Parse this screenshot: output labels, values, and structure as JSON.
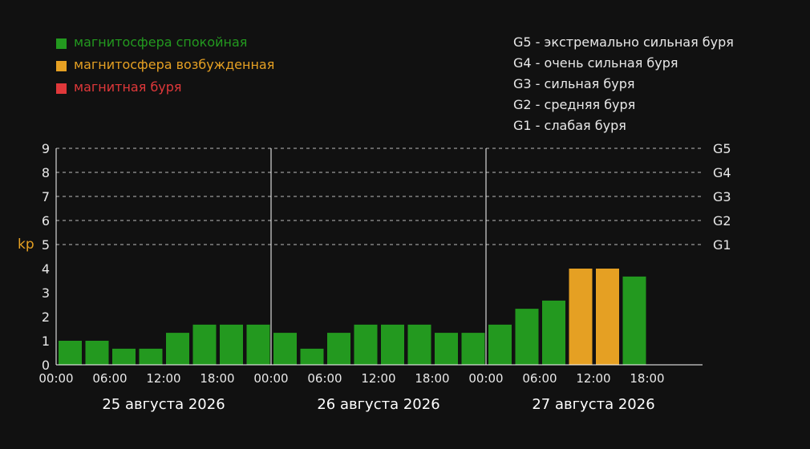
{
  "colors": {
    "background": "#111111",
    "calm": "#23991f",
    "excited": "#e5a023",
    "storm": "#e0383a",
    "text": "#e8e8e8",
    "ylabel": "#e5a023"
  },
  "legend": [
    {
      "label": "магнитосфера спокойная",
      "color": "#23991f"
    },
    {
      "label": "магнитосфера возбужденная",
      "color": "#e5a023"
    },
    {
      "label": "магнитная буря",
      "color": "#e0383a"
    }
  ],
  "g_scale_legend": [
    {
      "level": "G5",
      "dash": " - ",
      "text": "экстремально сильная буря"
    },
    {
      "level": "G4",
      "dash": " - ",
      "text": "очень сильная буря"
    },
    {
      "level": "G3",
      "dash": " - ",
      "text": "сильная буря"
    },
    {
      "level": "G2",
      "dash": " - ",
      "text": "средняя буря"
    },
    {
      "level": "G1",
      "dash": " - ",
      "text": "слабая буря"
    }
  ],
  "chart_data": {
    "type": "bar",
    "ylabel": "kp",
    "ylim": [
      0,
      9
    ],
    "y_ticks": [
      "0",
      "1",
      "2",
      "3",
      "4",
      "5",
      "6",
      "7",
      "8",
      "9"
    ],
    "g_levels": [
      {
        "label": "G1",
        "value": 5
      },
      {
        "label": "G2",
        "value": 6
      },
      {
        "label": "G3",
        "value": 7
      },
      {
        "label": "G4",
        "value": 8
      },
      {
        "label": "G5",
        "value": 9
      }
    ],
    "days": [
      {
        "date": "25 августа 2026",
        "tick_labels": [
          "00:00",
          "06:00",
          "12:00",
          "18:00"
        ]
      },
      {
        "date": "26 августа 2026",
        "tick_labels": [
          "00:00",
          "06:00",
          "12:00",
          "18:00"
        ]
      },
      {
        "date": "27 августа 2026",
        "tick_labels": [
          "00:00",
          "06:00",
          "12:00",
          "18:00"
        ]
      }
    ],
    "bars_per_day": 8,
    "values": [
      1,
      1,
      0.67,
      0.67,
      1.33,
      1.67,
      1.67,
      1.67,
      1.33,
      0.67,
      1.33,
      1.67,
      1.67,
      1.67,
      1.33,
      1.33,
      1.67,
      2.33,
      2.67,
      4,
      4,
      3.67
    ],
    "status": [
      "calm",
      "calm",
      "calm",
      "calm",
      "calm",
      "calm",
      "calm",
      "calm",
      "calm",
      "calm",
      "calm",
      "calm",
      "calm",
      "calm",
      "calm",
      "calm",
      "calm",
      "calm",
      "calm",
      "excited",
      "excited",
      "calm"
    ],
    "grid": "dashed at kp 5-9"
  }
}
